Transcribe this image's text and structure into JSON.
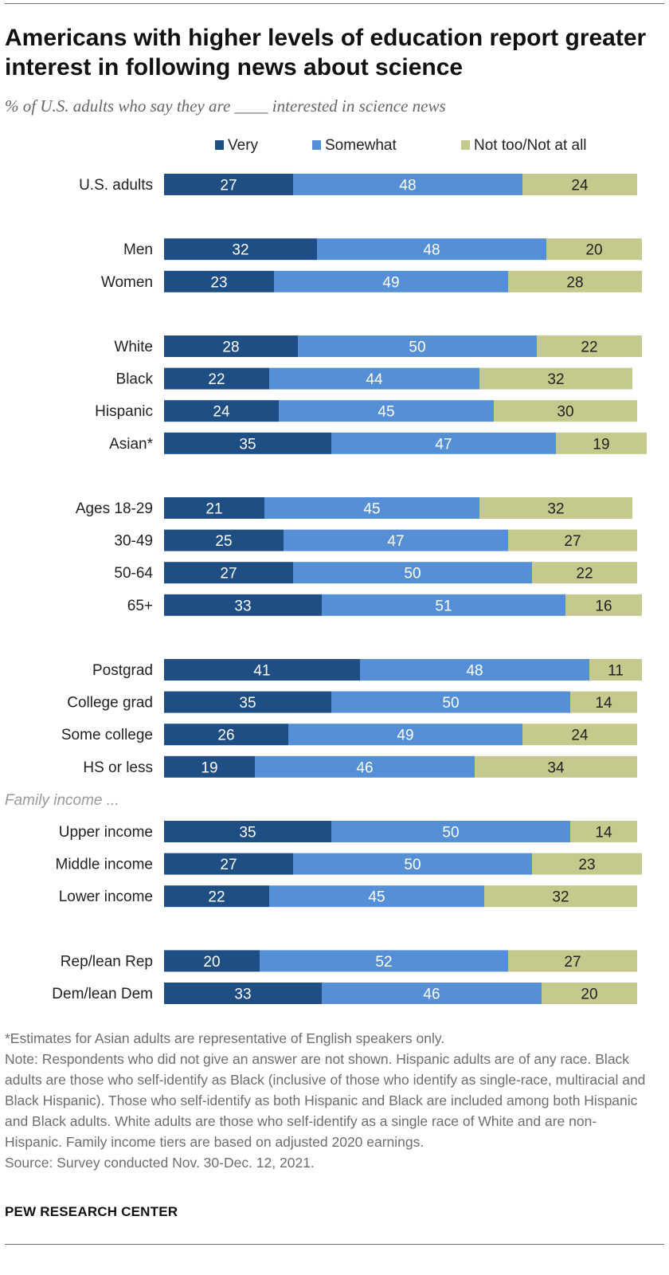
{
  "header": {
    "title": "Americans with higher levels of education report greater interest in following news about science",
    "subtitle": "% of U.S. adults who say they are ____ interested in science news"
  },
  "colors": {
    "very": "#1f4e84",
    "somewhat": "#5590d6",
    "not_too": "#c5c98e",
    "label_light": "#ffffff",
    "label_dark": "#222222"
  },
  "chart_data": {
    "type": "bar",
    "orientation": "horizontal",
    "stacked": true,
    "title": "Americans with higher levels of education report greater interest in following news about science",
    "xlabel": "",
    "ylabel": "",
    "xlim": [
      0,
      100
    ],
    "grid": false,
    "legend_position": "top",
    "series": [
      {
        "name": "Very",
        "key": "very"
      },
      {
        "name": "Somewhat",
        "key": "somewhat"
      },
      {
        "name": "Not too/Not at all",
        "key": "not_too"
      }
    ],
    "groups": [
      {
        "rows": [
          {
            "label": "U.S. adults",
            "values": [
              27,
              48,
              24
            ]
          }
        ]
      },
      {
        "rows": [
          {
            "label": "Men",
            "values": [
              32,
              48,
              20
            ]
          },
          {
            "label": "Women",
            "values": [
              23,
              49,
              28
            ]
          }
        ]
      },
      {
        "rows": [
          {
            "label": "White",
            "values": [
              28,
              50,
              22
            ]
          },
          {
            "label": "Black",
            "values": [
              22,
              44,
              32
            ]
          },
          {
            "label": "Hispanic",
            "values": [
              24,
              45,
              30
            ]
          },
          {
            "label": "Asian*",
            "values": [
              35,
              47,
              19
            ]
          }
        ]
      },
      {
        "rows": [
          {
            "label": "Ages 18-29",
            "values": [
              21,
              45,
              32
            ]
          },
          {
            "label": "30-49",
            "values": [
              25,
              47,
              27
            ]
          },
          {
            "label": "50-64",
            "values": [
              27,
              50,
              22
            ]
          },
          {
            "label": "65+",
            "values": [
              33,
              51,
              16
            ]
          }
        ]
      },
      {
        "rows": [
          {
            "label": "Postgrad",
            "values": [
              41,
              48,
              11
            ]
          },
          {
            "label": "College grad",
            "values": [
              35,
              50,
              14
            ]
          },
          {
            "label": "Some college",
            "values": [
              26,
              49,
              24
            ]
          },
          {
            "label": "HS or less",
            "values": [
              19,
              46,
              34
            ]
          }
        ]
      },
      {
        "heading": "Family income ...",
        "rows": [
          {
            "label": "Upper income",
            "values": [
              35,
              50,
              14
            ]
          },
          {
            "label": "Middle income",
            "values": [
              27,
              50,
              23
            ]
          },
          {
            "label": "Lower income",
            "values": [
              22,
              45,
              32
            ]
          }
        ]
      },
      {
        "rows": [
          {
            "label": "Rep/lean Rep",
            "values": [
              20,
              52,
              27
            ]
          },
          {
            "label": "Dem/lean Dem",
            "values": [
              33,
              46,
              20
            ]
          }
        ]
      }
    ]
  },
  "footnotes": {
    "asterisk": "*Estimates for Asian adults are representative of English speakers only.",
    "note": "Note: Respondents who did not give an answer are not shown. Hispanic adults are of any race. Black adults are those who self-identify as Black (inclusive of those who identify as single-race, multiracial and Black Hispanic). Those who self-identify as both Hispanic and Black are included among both Hispanic and Black adults. White adults are those who self-identify as a single race of White and are non-Hispanic. Family income tiers are based on adjusted 2020 earnings.",
    "source": "Source: Survey conducted Nov. 30-Dec. 12, 2021."
  },
  "brand": "PEW RESEARCH CENTER"
}
